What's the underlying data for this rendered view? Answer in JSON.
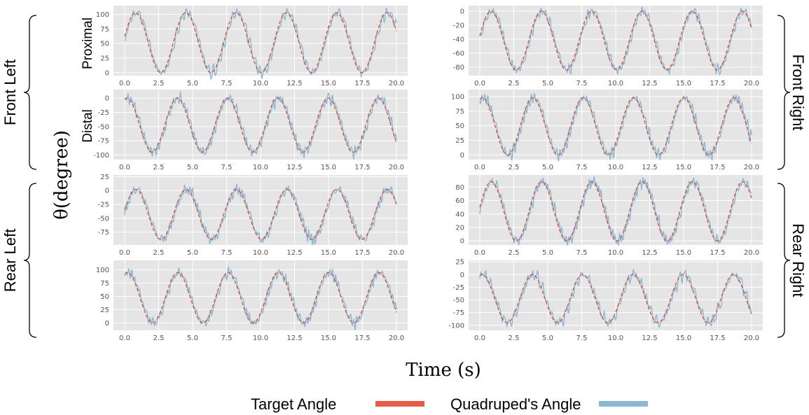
{
  "figure": {
    "ylabel": "θ(degree)",
    "xlabel": "Time (s)",
    "groups": {
      "front_left": "Front Left",
      "front_right": "Front Right",
      "rear_left": "Rear Left",
      "rear_right": "Rear Right"
    },
    "row_labels": {
      "proximal": "Proximal",
      "distal": "Distal"
    }
  },
  "legend": {
    "target_label": "Target Angle",
    "quadruped_label": "Quadruped's Angle"
  },
  "colors": {
    "panel_bg": "#e5e5e5",
    "grid": "#ffffff",
    "target": "#e24a33",
    "quadruped": "#8cb8d6"
  },
  "chart_data": [
    {
      "id": "front-left-proximal",
      "type": "line",
      "xlim": [
        0,
        20
      ],
      "ylim": [
        -5,
        115
      ],
      "xticks": [
        0.0,
        2.5,
        5.0,
        7.5,
        10.0,
        12.5,
        15.0,
        17.5,
        20.0
      ],
      "yticks": [
        0,
        25,
        50,
        75,
        100
      ],
      "target": {
        "period": 3.7,
        "min": 0,
        "max": 103,
        "start": 62
      },
      "noise": 9,
      "series": [
        {
          "name": "Target Angle"
        },
        {
          "name": "Quadruped's Angle"
        }
      ]
    },
    {
      "id": "front-right-proximal",
      "type": "line",
      "xlim": [
        0,
        20
      ],
      "ylim": [
        -92,
        8
      ],
      "xticks": [
        0.0,
        2.5,
        5.0,
        7.5,
        10.0,
        12.5,
        15.0,
        17.5,
        20.0
      ],
      "yticks": [
        -80,
        -60,
        -40,
        -20,
        0
      ],
      "target": {
        "period": 3.7,
        "min": -84,
        "max": 0,
        "start": -35
      },
      "noise": 7,
      "series": [
        {
          "name": "Target Angle"
        },
        {
          "name": "Quadruped's Angle"
        }
      ]
    },
    {
      "id": "front-left-distal",
      "type": "line",
      "xlim": [
        0,
        20
      ],
      "ylim": [
        -108,
        15
      ],
      "xticks": [
        0.0,
        2.5,
        5.0,
        7.5,
        10.0,
        12.5,
        15.0,
        17.5,
        20.0
      ],
      "yticks": [
        -100,
        -75,
        -50,
        -25,
        0
      ],
      "target": {
        "period": 3.7,
        "min": -95,
        "max": 0,
        "start": -2
      },
      "noise": 11,
      "series": [
        {
          "name": "Target Angle"
        },
        {
          "name": "Quadruped's Angle"
        }
      ]
    },
    {
      "id": "front-right-distal",
      "type": "line",
      "xlim": [
        0,
        20
      ],
      "ylim": [
        -8,
        112
      ],
      "xticks": [
        0.0,
        2.5,
        5.0,
        7.5,
        10.0,
        12.5,
        15.0,
        17.5,
        20.0
      ],
      "yticks": [
        0,
        25,
        50,
        75,
        100
      ],
      "target": {
        "period": 3.7,
        "min": 0,
        "max": 98,
        "start": 95
      },
      "noise": 10,
      "series": [
        {
          "name": "Target Angle"
        },
        {
          "name": "Quadruped's Angle"
        }
      ]
    },
    {
      "id": "rear-left-proximal",
      "type": "line",
      "xlim": [
        0,
        20
      ],
      "ylim": [
        -98,
        28
      ],
      "xticks": [
        0.0,
        2.5,
        5.0,
        7.5,
        10.0,
        12.5,
        15.0,
        17.5,
        20.0
      ],
      "yticks": [
        -75,
        -50,
        -25,
        0,
        25
      ],
      "target": {
        "period": 3.7,
        "min": -88,
        "max": 2,
        "start": -35
      },
      "noise": 9,
      "series": [
        {
          "name": "Target Angle"
        },
        {
          "name": "Quadruped's Angle"
        }
      ]
    },
    {
      "id": "rear-right-proximal",
      "type": "line",
      "xlim": [
        0,
        20
      ],
      "ylim": [
        -6,
        98
      ],
      "xticks": [
        0.0,
        2.5,
        5.0,
        7.5,
        10.0,
        12.5,
        15.0,
        17.5,
        20.0
      ],
      "yticks": [
        0,
        20,
        40,
        60,
        80
      ],
      "target": {
        "period": 3.7,
        "min": 0,
        "max": 88,
        "start": 50
      },
      "noise": 7,
      "series": [
        {
          "name": "Target Angle"
        },
        {
          "name": "Quadruped's Angle"
        }
      ]
    },
    {
      "id": "rear-left-distal",
      "type": "line",
      "xlim": [
        0,
        20
      ],
      "ylim": [
        -14,
        118
      ],
      "xticks": [
        0.0,
        2.5,
        5.0,
        7.5,
        10.0,
        12.5,
        15.0,
        17.5,
        20.0
      ],
      "yticks": [
        0,
        25,
        50,
        75,
        100
      ],
      "target": {
        "period": 3.7,
        "min": 0,
        "max": 95,
        "start": 92
      },
      "noise": 11,
      "series": [
        {
          "name": "Target Angle"
        },
        {
          "name": "Quadruped's Angle"
        }
      ]
    },
    {
      "id": "rear-right-distal",
      "type": "line",
      "xlim": [
        0,
        20
      ],
      "ylim": [
        -110,
        28
      ],
      "xticks": [
        0.0,
        2.5,
        5.0,
        7.5,
        10.0,
        12.5,
        15.0,
        17.5,
        20.0
      ],
      "yticks": [
        -100,
        -75,
        -50,
        -25,
        0,
        25
      ],
      "target": {
        "period": 3.7,
        "min": -95,
        "max": 0,
        "start": -2
      },
      "noise": 12,
      "series": [
        {
          "name": "Target Angle"
        },
        {
          "name": "Quadruped's Angle"
        }
      ]
    }
  ]
}
